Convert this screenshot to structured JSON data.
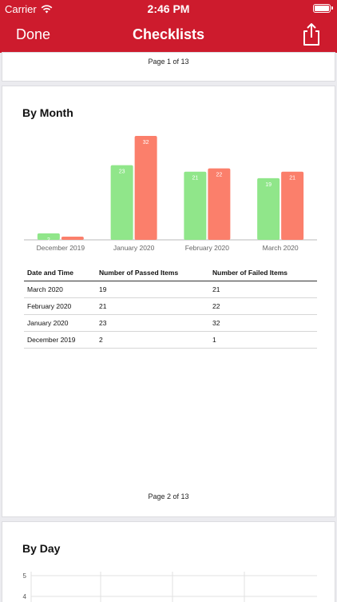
{
  "status_bar": {
    "carrier": "Carrier",
    "time": "2:46 PM"
  },
  "nav": {
    "done_label": "Done",
    "title": "Checklists",
    "share_icon": "share-icon"
  },
  "page1": {
    "footer": "Page 1 of 13"
  },
  "page2": {
    "section_title": "By Month",
    "footer": "Page 2 of 13",
    "table": {
      "headers": [
        "Date and Time",
        "Number of Passed Items",
        "Number of Failed Items"
      ],
      "rows": [
        [
          "March 2020",
          "19",
          "21"
        ],
        [
          "February 2020",
          "21",
          "22"
        ],
        [
          "January 2020",
          "23",
          "32"
        ],
        [
          "December 2019",
          "2",
          "1"
        ]
      ]
    }
  },
  "page3": {
    "section_title": "By Day"
  },
  "chart_data": [
    {
      "type": "bar",
      "categories": [
        "December 2019",
        "January 2020",
        "February 2020",
        "March 2020"
      ],
      "series": [
        {
          "values": [
            2,
            23,
            21,
            19
          ],
          "color": "#90e68a"
        },
        {
          "values": [
            1,
            32,
            22,
            21
          ],
          "color": "#fb7f6b"
        }
      ],
      "ylim": [
        0,
        32
      ],
      "grid": false
    },
    {
      "type": "line",
      "y_ticks": [
        "5",
        "4"
      ],
      "grid": true
    }
  ]
}
